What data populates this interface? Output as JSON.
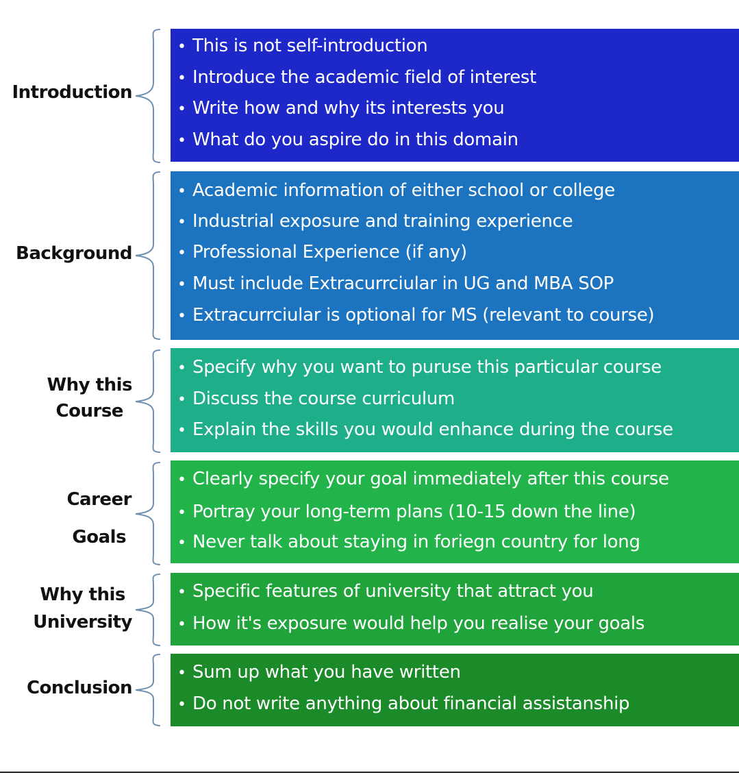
{
  "colors": {
    "introduction": "#1e28c8",
    "background": "#1c74c0",
    "course": "#1eae8a",
    "career": "#22b34a",
    "university": "#20a33a",
    "conclusion": "#1b8a28"
  },
  "sections": [
    {
      "label": [
        "Introduction"
      ],
      "items": [
        "This is not self-introduction",
        "Introduce the academic field of interest",
        "Write how and why its interests you",
        "What do you aspire do in this domain"
      ]
    },
    {
      "label": [
        "Background"
      ],
      "items": [
        "Academic information of either school or college",
        "Industrial exposure and training experience",
        "Professional Experience (if any)",
        "Must include Extracurrciular in UG and MBA SOP",
        "Extracurrciular is optional for MS (relevant to course)"
      ]
    },
    {
      "label": [
        "Why this",
        "Course"
      ],
      "items": [
        "Specify why you want to puruse this particular course",
        "Discuss the course curriculum",
        "Explain the skills you would enhance during the course"
      ]
    },
    {
      "label": [
        "Career",
        "Goals"
      ],
      "items": [
        "Clearly specify your goal immediately after this course",
        "Portray your long-term plans (10-15 down the line)",
        "Never talk about staying in foriegn country for long"
      ]
    },
    {
      "label": [
        "Why this",
        "University"
      ],
      "items": [
        "Specific features of university that attract you",
        "How it's exposure would help you realise your goals"
      ]
    },
    {
      "label": [
        "Conclusion"
      ],
      "items": [
        "Sum up what you have written",
        "Do not write anything about financial assistanship"
      ]
    }
  ]
}
